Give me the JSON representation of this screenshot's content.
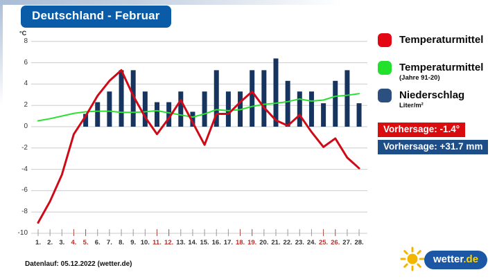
{
  "title": "Deutschland - Februar",
  "axis": {
    "unit_label": "°C"
  },
  "chart_data": {
    "type": "combo",
    "title": "Deutschland - Februar",
    "ylabel": "°C",
    "ylim": [
      -10,
      8
    ],
    "y_ticks": [
      8,
      6,
      4,
      2,
      0,
      -2,
      -4,
      -6,
      -8,
      -10
    ],
    "grid": true,
    "legend_position": "right",
    "categories": [
      "1.",
      "2.",
      "3.",
      "4.",
      "5.",
      "6.",
      "7.",
      "8.",
      "9.",
      "10.",
      "11.",
      "12.",
      "13.",
      "14.",
      "15.",
      "16.",
      "17.",
      "18.",
      "19.",
      "20.",
      "21.",
      "22.",
      "23.",
      "24.",
      "25.",
      "26.",
      "27.",
      "28."
    ],
    "red_days": [
      4,
      5,
      11,
      12,
      18,
      19,
      25,
      26
    ],
    "series": [
      {
        "name": "Temperaturmittel",
        "type": "line",
        "color": "#cf0a18",
        "values": [
          -9.0,
          -7.0,
          -4.5,
          -0.7,
          1.0,
          2.9,
          4.3,
          5.3,
          2.9,
          0.9,
          -0.7,
          0.8,
          2.5,
          0.4,
          -1.7,
          1.2,
          1.2,
          2.3,
          3.3,
          1.8,
          0.6,
          0.1,
          1.1,
          -0.5,
          -1.9,
          -1.1,
          -2.9,
          -3.9
        ]
      },
      {
        "name": "Temperaturmittel (Jahre 91-20)",
        "type": "line",
        "color": "#2ce032",
        "values": [
          0.55,
          0.75,
          1.0,
          1.25,
          1.4,
          1.45,
          1.45,
          1.35,
          1.35,
          1.4,
          1.5,
          1.3,
          1.1,
          0.9,
          1.2,
          1.6,
          1.5,
          1.6,
          1.9,
          2.1,
          2.2,
          2.35,
          2.6,
          2.4,
          2.5,
          2.85,
          2.95,
          3.1
        ]
      },
      {
        "name": "Niederschlag (Liter/m²)",
        "type": "bar",
        "color": "#17345f",
        "values": [
          0,
          0,
          0,
          0,
          1.2,
          2.3,
          3.3,
          5.3,
          5.3,
          3.3,
          2.3,
          2.3,
          3.3,
          1.4,
          3.3,
          5.3,
          3.3,
          3.3,
          5.3,
          5.3,
          6.4,
          4.3,
          3.3,
          3.3,
          2.2,
          4.3,
          5.3,
          2.2
        ]
      }
    ]
  },
  "legend": {
    "items": [
      {
        "label": "Temperaturmittel",
        "color": "#e30613"
      },
      {
        "label": "Temperaturmittel",
        "sub": "(Jahre 91-20)",
        "color": "#21e12d"
      },
      {
        "label": "Niederschlag",
        "sub": "Liter/m²",
        "color": "#2b4f7e"
      }
    ]
  },
  "forecast": {
    "temperature_label": "Vorhersage: -1.4°",
    "precipitation_label": "Vorhersage: +31.7 mm"
  },
  "footer": {
    "datenlauf": "Datenlauf: 05.12.2022 (wetter.de)"
  },
  "logo": {
    "name": "wetter",
    "tld": ".de"
  }
}
